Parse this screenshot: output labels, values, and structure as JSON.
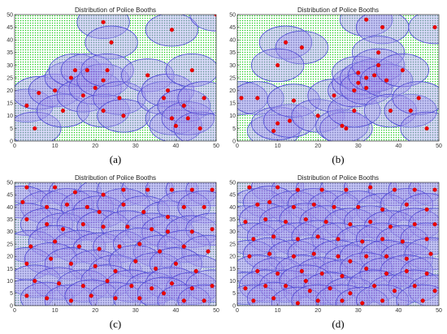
{
  "colors": {
    "range_fill": "#a9a9f0",
    "range_stroke": "#4a4ad6",
    "booth": "#ee0000",
    "grid_point": "#22cc22",
    "covered_point": "#7a4cc8"
  },
  "chart_data": [
    {
      "panel": "a",
      "type": "scatter",
      "title": "Distribution of Police Booths",
      "caption": "(a)",
      "xlim": [
        0,
        50
      ],
      "ylim": [
        0,
        50
      ],
      "xticks": [
        0,
        10,
        20,
        30,
        40,
        50
      ],
      "yticks": [
        0,
        5,
        10,
        15,
        20,
        25,
        30,
        35,
        40,
        45,
        50
      ],
      "coverage_radius": 6.5,
      "booths": [
        [
          22,
          47
        ],
        [
          24,
          39
        ],
        [
          39,
          44
        ],
        [
          50,
          50
        ],
        [
          3,
          14
        ],
        [
          5,
          5
        ],
        [
          6,
          19
        ],
        [
          10,
          20
        ],
        [
          12,
          12
        ],
        [
          14,
          25
        ],
        [
          15,
          28
        ],
        [
          17,
          18
        ],
        [
          18,
          28
        ],
        [
          20,
          21
        ],
        [
          22,
          24
        ],
        [
          22,
          12
        ],
        [
          23,
          28
        ],
        [
          26,
          17
        ],
        [
          27,
          10
        ],
        [
          33,
          26
        ],
        [
          37,
          17
        ],
        [
          38,
          20
        ],
        [
          39,
          9
        ],
        [
          40,
          6
        ],
        [
          42,
          14
        ],
        [
          43,
          9
        ],
        [
          44,
          28
        ],
        [
          46,
          5
        ],
        [
          47,
          17
        ]
      ]
    },
    {
      "panel": "b",
      "type": "scatter",
      "title": "Distribution of Police Booths",
      "caption": "(b)",
      "xlim": [
        0,
        50
      ],
      "ylim": [
        0,
        50
      ],
      "xticks": [
        0,
        10,
        20,
        30,
        40,
        50
      ],
      "yticks": [
        0,
        5,
        10,
        15,
        20,
        25,
        30,
        35,
        40,
        45,
        50
      ],
      "coverage_radius": 6.5,
      "booths": [
        [
          32,
          48
        ],
        [
          36,
          45
        ],
        [
          49,
          45
        ],
        [
          12,
          39
        ],
        [
          16,
          37
        ],
        [
          10,
          30
        ],
        [
          35,
          35
        ],
        [
          1,
          17
        ],
        [
          5,
          17
        ],
        [
          9,
          4
        ],
        [
          10,
          7
        ],
        [
          13,
          8
        ],
        [
          14,
          16
        ],
        [
          20,
          10
        ],
        [
          24,
          18
        ],
        [
          26,
          6
        ],
        [
          27,
          5
        ],
        [
          29,
          12
        ],
        [
          29,
          20
        ],
        [
          30,
          23
        ],
        [
          30,
          27
        ],
        [
          32,
          25
        ],
        [
          32,
          21
        ],
        [
          34,
          26
        ],
        [
          35,
          30
        ],
        [
          37,
          24
        ],
        [
          38,
          12
        ],
        [
          41,
          28
        ],
        [
          43,
          12
        ],
        [
          45,
          17
        ],
        [
          47,
          5
        ]
      ]
    },
    {
      "panel": "c",
      "type": "scatter",
      "title": "Distribution of Police Booths",
      "caption": "(c)",
      "xlim": [
        0,
        50
      ],
      "ylim": [
        0,
        50
      ],
      "xticks": [
        0,
        10,
        20,
        30,
        40,
        50
      ],
      "yticks": [
        0,
        5,
        10,
        15,
        20,
        25,
        30,
        35,
        40,
        45,
        50
      ],
      "coverage_radius": 6.5,
      "booths": [
        [
          3,
          48
        ],
        [
          10,
          48
        ],
        [
          15,
          46
        ],
        [
          22,
          45
        ],
        [
          27,
          47
        ],
        [
          33,
          47
        ],
        [
          39,
          47
        ],
        [
          44,
          47
        ],
        [
          49,
          47
        ],
        [
          2,
          42
        ],
        [
          8,
          40
        ],
        [
          13,
          41
        ],
        [
          18,
          40
        ],
        [
          21,
          38
        ],
        [
          27,
          41
        ],
        [
          32,
          38
        ],
        [
          38,
          36
        ],
        [
          42,
          40
        ],
        [
          47,
          40
        ],
        [
          3,
          35
        ],
        [
          8,
          33
        ],
        [
          12,
          31
        ],
        [
          17,
          33
        ],
        [
          22,
          32
        ],
        [
          28,
          32
        ],
        [
          34,
          31
        ],
        [
          38,
          30
        ],
        [
          44,
          30
        ],
        [
          49,
          31
        ],
        [
          4,
          24
        ],
        [
          10,
          26
        ],
        [
          16,
          24
        ],
        [
          21,
          23
        ],
        [
          26,
          24
        ],
        [
          31,
          25
        ],
        [
          36,
          22
        ],
        [
          42,
          24
        ],
        [
          48,
          22
        ],
        [
          3,
          17
        ],
        [
          9,
          19
        ],
        [
          14,
          17
        ],
        [
          20,
          16
        ],
        [
          25,
          14
        ],
        [
          30,
          18
        ],
        [
          35,
          15
        ],
        [
          40,
          17
        ],
        [
          45,
          14
        ],
        [
          5,
          10
        ],
        [
          11,
          9
        ],
        [
          17,
          8
        ],
        [
          23,
          10
        ],
        [
          29,
          8
        ],
        [
          34,
          7
        ],
        [
          39,
          9
        ],
        [
          44,
          7
        ],
        [
          49,
          8
        ],
        [
          3,
          4
        ],
        [
          8,
          3
        ],
        [
          14,
          2
        ],
        [
          19,
          4
        ],
        [
          25,
          3
        ],
        [
          31,
          3
        ],
        [
          37,
          5
        ],
        [
          42,
          2
        ],
        [
          47,
          2
        ]
      ]
    },
    {
      "panel": "d",
      "type": "scatter",
      "title": "Distribution of Police Booths",
      "caption": "(d)",
      "xlim": [
        0,
        50
      ],
      "ylim": [
        0,
        50
      ],
      "xticks": [
        0,
        10,
        20,
        30,
        40,
        50
      ],
      "yticks": [
        0,
        5,
        10,
        15,
        20,
        25,
        30,
        35,
        40,
        45,
        50
      ],
      "coverage_radius": 6.5,
      "booths": [
        [
          3,
          48
        ],
        [
          10,
          48
        ],
        [
          15,
          47
        ],
        [
          21,
          47
        ],
        [
          27,
          47
        ],
        [
          33,
          48
        ],
        [
          39,
          47
        ],
        [
          44,
          47
        ],
        [
          49,
          47
        ],
        [
          5,
          41
        ],
        [
          8,
          42
        ],
        [
          14,
          40
        ],
        [
          19,
          41
        ],
        [
          24,
          40
        ],
        [
          30,
          40
        ],
        [
          36,
          39
        ],
        [
          42,
          41
        ],
        [
          47,
          39
        ],
        [
          2,
          34
        ],
        [
          7,
          35
        ],
        [
          12,
          34
        ],
        [
          17,
          35
        ],
        [
          22,
          34
        ],
        [
          28,
          33
        ],
        [
          33,
          34
        ],
        [
          38,
          32
        ],
        [
          44,
          33
        ],
        [
          49,
          33
        ],
        [
          4,
          27
        ],
        [
          9,
          28
        ],
        [
          15,
          27
        ],
        [
          20,
          28
        ],
        [
          25,
          27
        ],
        [
          31,
          26
        ],
        [
          36,
          27
        ],
        [
          41,
          26
        ],
        [
          47,
          27
        ],
        [
          3,
          20
        ],
        [
          8,
          21
        ],
        [
          14,
          20
        ],
        [
          19,
          21
        ],
        [
          25,
          20
        ],
        [
          28,
          18
        ],
        [
          32,
          20
        ],
        [
          37,
          20
        ],
        [
          42,
          19
        ],
        [
          48,
          21
        ],
        [
          5,
          14
        ],
        [
          10,
          13
        ],
        [
          16,
          14
        ],
        [
          21,
          13
        ],
        [
          26,
          12
        ],
        [
          32,
          15
        ],
        [
          37,
          13
        ],
        [
          42,
          14
        ],
        [
          47,
          13
        ],
        [
          2,
          7
        ],
        [
          7,
          8
        ],
        [
          12,
          8
        ],
        [
          18,
          6
        ],
        [
          17,
          10
        ],
        [
          23,
          7
        ],
        [
          28,
          5
        ],
        [
          34,
          8
        ],
        [
          39,
          6
        ],
        [
          44,
          8
        ],
        [
          49,
          6
        ],
        [
          4,
          2
        ],
        [
          9,
          3
        ],
        [
          15,
          1
        ],
        [
          20,
          2
        ],
        [
          26,
          2
        ],
        [
          31,
          1
        ],
        [
          36,
          2
        ],
        [
          46,
          2
        ]
      ]
    }
  ]
}
